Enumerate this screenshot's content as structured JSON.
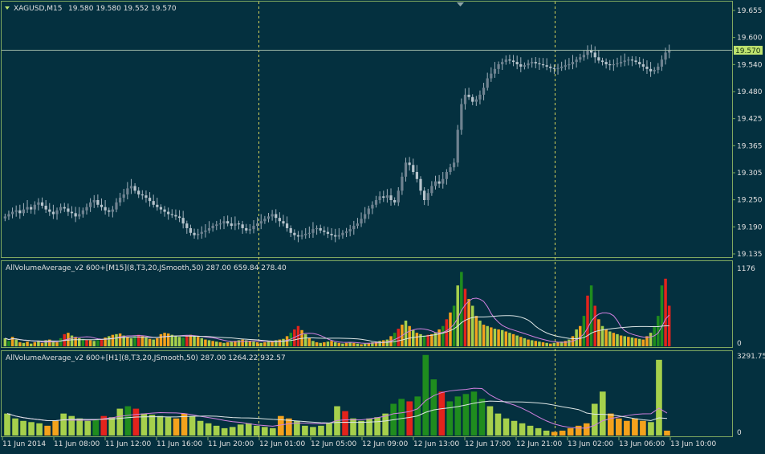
{
  "colors": {
    "background": "#04303f",
    "frame": "#7fa860",
    "text": "#e0e0e0",
    "bull_candle": "#6f8290",
    "bear_candle": "#b7c4cc",
    "wick": "#9fb0bb",
    "grid_dashed": "#d6d35a",
    "price_line": "#9fb8a8",
    "price_tag_bg": "#bfe36f",
    "price_tag_text": "#10300f",
    "vol_lightgreen": "#a6d04c",
    "vol_darkgreen": "#1f8c1e",
    "vol_red": "#e3231c",
    "vol_orange": "#f4a21c",
    "ma_white": "#dde6e6",
    "ma_magenta": "#d080e0"
  },
  "main_panel": {
    "header_title": "XAGUSD,M15",
    "header_ohlc": "19.580 19.580 19.552 19.570",
    "price_tag": "19.570"
  },
  "volume_m15_panel": {
    "header": "AllVolumeAverage_v2 600+[M15](8,T3,20,JSmooth,50) 287.00 659.84 278.40"
  },
  "volume_h1_panel": {
    "header": "AllVolumeAverage_v2 600+[H1](8,T3,20,JSmooth,50) 287.00 1264.22 932.57"
  },
  "chart_data": [
    {
      "type": "candlestick",
      "symbol": "XAGUSD",
      "timeframe": "M15",
      "ylim": [
        19.135,
        19.655
      ],
      "y_ticks": [
        "19.655",
        "19.600",
        "19.540",
        "19.480",
        "19.425",
        "19.365",
        "19.305",
        "19.250",
        "19.190",
        "19.135"
      ],
      "x_ticks": [
        "11 Jun 2014",
        "11 Jun 08:00",
        "11 Jun 12:00",
        "11 Jun 16:00",
        "11 Jun 20:00",
        "12 Jun 01:00",
        "12 Jun 05:00",
        "12 Jun 09:00",
        "12 Jun 13:00",
        "12 Jun 17:00",
        "12 Jun 21:00",
        "13 Jun 02:00",
        "13 Jun 06:00",
        "13 Jun 10:00"
      ],
      "last_price": 19.57,
      "closes": [
        19.215,
        19.22,
        19.225,
        19.228,
        19.222,
        19.23,
        19.235,
        19.23,
        19.24,
        19.245,
        19.238,
        19.23,
        19.225,
        19.22,
        19.228,
        19.235,
        19.232,
        19.225,
        19.222,
        19.215,
        19.22,
        19.228,
        19.235,
        19.245,
        19.25,
        19.24,
        19.235,
        19.228,
        19.225,
        19.23,
        19.245,
        19.255,
        19.262,
        19.275,
        19.28,
        19.27,
        19.262,
        19.26,
        19.255,
        19.248,
        19.24,
        19.235,
        19.23,
        19.225,
        19.22,
        19.218,
        19.215,
        19.212,
        19.2,
        19.19,
        19.18,
        19.175,
        19.178,
        19.182,
        19.185,
        19.19,
        19.195,
        19.198,
        19.2,
        19.205,
        19.2,
        19.195,
        19.2,
        19.198,
        19.19,
        19.185,
        19.188,
        19.195,
        19.2,
        19.205,
        19.21,
        19.215,
        19.22,
        19.212,
        19.205,
        19.2,
        19.19,
        19.18,
        19.175,
        19.172,
        19.175,
        19.178,
        19.18,
        19.188,
        19.19,
        19.185,
        19.182,
        19.178,
        19.175,
        19.172,
        19.175,
        19.18,
        19.183,
        19.188,
        19.195,
        19.2,
        19.21,
        19.22,
        19.232,
        19.24,
        19.25,
        19.258,
        19.255,
        19.26,
        19.25,
        19.245,
        19.27,
        19.3,
        19.33,
        19.325,
        19.31,
        19.295,
        19.27,
        19.25,
        19.265,
        19.28,
        19.29,
        19.285,
        19.295,
        19.31,
        19.32,
        19.33,
        19.4,
        19.455,
        19.475,
        19.47,
        19.46,
        19.465,
        19.475,
        19.49,
        19.51,
        19.52,
        19.53,
        19.54,
        19.545,
        19.55,
        19.548,
        19.545,
        19.54,
        19.535,
        19.538,
        19.542,
        19.545,
        19.542,
        19.54,
        19.538,
        19.535,
        19.532,
        19.53,
        19.532,
        19.535,
        19.538,
        19.54,
        19.545,
        19.55,
        19.555,
        19.56,
        19.57,
        19.565,
        19.555,
        19.548,
        19.545,
        19.54,
        19.538,
        19.54,
        19.542,
        19.545,
        19.548,
        19.55,
        19.548,
        19.545,
        19.54,
        19.535,
        19.53,
        19.525,
        19.528,
        19.535,
        19.55,
        19.565,
        19.57
      ]
    },
    {
      "type": "bar",
      "name": "AllVolumeAverage_v2 600+[M15]",
      "ylim": [
        0,
        1176
      ],
      "y_ticks": [
        "1176",
        "0"
      ],
      "values": [
        120,
        80,
        140,
        100,
        60,
        50,
        70,
        40,
        60,
        80,
        50,
        90,
        100,
        70,
        60,
        120,
        180,
        200,
        160,
        140,
        120,
        110,
        100,
        90,
        80,
        90,
        110,
        130,
        150,
        170,
        180,
        190,
        160,
        140,
        120,
        150,
        170,
        150,
        130,
        110,
        100,
        120,
        180,
        200,
        190,
        170,
        150,
        140,
        130,
        150,
        170,
        160,
        140,
        120,
        100,
        90,
        80,
        70,
        60,
        50,
        60,
        70,
        80,
        90,
        100,
        90,
        80,
        70,
        60,
        50,
        60,
        70,
        80,
        90,
        100,
        110,
        150,
        200,
        250,
        300,
        240,
        180,
        120,
        80,
        60,
        50,
        60,
        70,
        80,
        60,
        50,
        40,
        50,
        60,
        50,
        40,
        30,
        40,
        50,
        60,
        70,
        80,
        90,
        100,
        150,
        200,
        260,
        320,
        380,
        300,
        240,
        200,
        180,
        160,
        170,
        180,
        200,
        250,
        300,
        400,
        500,
        600,
        900,
        1100,
        850,
        700,
        600,
        450,
        380,
        320,
        300,
        280,
        260,
        250,
        240,
        220,
        200,
        180,
        160,
        140,
        120,
        100,
        90,
        80,
        70,
        60,
        50,
        40,
        50,
        60,
        70,
        80,
        100,
        150,
        250,
        300,
        450,
        750,
        900,
        600,
        400,
        300,
        250,
        220,
        200,
        180,
        160,
        150,
        140,
        130,
        120,
        110,
        100,
        150,
        200,
        300,
        450,
        900,
        1000,
        600
      ],
      "colors": [
        "lightgreen",
        "darkgreen",
        "orange",
        "lightgreen",
        "orange",
        "lightgreen",
        "orange",
        "lightgreen",
        "orange",
        "lightgreen",
        "orange",
        "lightgreen",
        "orange",
        "lightgreen",
        "orange",
        "darkgreen",
        "red",
        "orange",
        "lightgreen",
        "orange",
        "lightgreen",
        "darkgreen",
        "red",
        "orange",
        "lightgreen",
        "darkgreen",
        "red",
        "orange",
        "lightgreen",
        "orange",
        "lightgreen",
        "orange",
        "lightgreen",
        "orange",
        "lightgreen",
        "darkgreen",
        "red",
        "orange",
        "lightgreen",
        "orange",
        "lightgreen",
        "orange",
        "orange",
        "orange",
        "orange",
        "lightgreen",
        "lightgreen",
        "lightgreen",
        "darkgreen",
        "red",
        "orange",
        "lightgreen",
        "orange",
        "lightgreen",
        "orange",
        "lightgreen",
        "orange",
        "lightgreen",
        "orange",
        "lightgreen",
        "orange",
        "lightgreen",
        "orange",
        "lightgreen",
        "orange",
        "lightgreen",
        "orange",
        "lightgreen",
        "orange",
        "lightgreen",
        "orange",
        "lightgreen",
        "orange",
        "lightgreen",
        "orange",
        "lightgreen",
        "orange",
        "darkgreen",
        "red",
        "red",
        "orange",
        "lightgreen",
        "orange",
        "lightgreen",
        "orange",
        "lightgreen",
        "orange",
        "lightgreen",
        "orange",
        "lightgreen",
        "orange",
        "lightgreen",
        "orange",
        "lightgreen",
        "orange",
        "lightgreen",
        "orange",
        "lightgreen",
        "orange",
        "lightgreen",
        "orange",
        "lightgreen",
        "orange",
        "lightgreen",
        "orange",
        "darkgreen",
        "red",
        "orange",
        "lightgreen",
        "orange",
        "lightgreen",
        "orange",
        "lightgreen",
        "darkgreen",
        "red",
        "orange",
        "lightgreen",
        "orange",
        "darkgreen",
        "red",
        "orange",
        "darkgreen",
        "lightgreen",
        "darkgreen",
        "red",
        "orange",
        "lightgreen",
        "orange",
        "lightgreen",
        "orange",
        "lightgreen",
        "orange",
        "lightgreen",
        "orange",
        "lightgreen",
        "orange",
        "lightgreen",
        "orange",
        "lightgreen",
        "orange",
        "lightgreen",
        "orange",
        "lightgreen",
        "orange",
        "lightgreen",
        "orange",
        "lightgreen",
        "orange",
        "lightgreen",
        "orange",
        "lightgreen",
        "orange",
        "lightgreen",
        "orange",
        "lightgreen",
        "orange",
        "darkgreen",
        "red",
        "darkgreen",
        "red",
        "orange",
        "lightgreen",
        "orange",
        "lightgreen",
        "orange",
        "lightgreen",
        "orange",
        "lightgreen",
        "orange",
        "lightgreen",
        "orange",
        "lightgreen",
        "orange",
        "orange",
        "lightgreen",
        "darkgreen",
        "darkgreen",
        "darkgreen",
        "red",
        "red"
      ]
    },
    {
      "type": "bar",
      "name": "AllVolumeAverage_v2 600+[H1]",
      "ylim": [
        0,
        3291.75
      ],
      "y_ticks": [
        "3291.75",
        "0"
      ],
      "values": [
        900,
        700,
        600,
        550,
        500,
        400,
        600,
        900,
        800,
        700,
        600,
        650,
        800,
        750,
        1100,
        1200,
        1100,
        900,
        850,
        800,
        750,
        700,
        900,
        800,
        600,
        500,
        400,
        300,
        350,
        450,
        500,
        400,
        350,
        300,
        800,
        700,
        600,
        400,
        350,
        400,
        500,
        1200,
        1000,
        700,
        600,
        700,
        750,
        900,
        1300,
        1500,
        1400,
        1600,
        3300,
        2300,
        1800,
        1400,
        1600,
        1700,
        1800,
        1500,
        1200,
        900,
        700,
        600,
        500,
        400,
        300,
        200,
        150,
        200,
        300,
        400,
        500,
        1300,
        1800,
        900,
        700,
        600,
        700,
        600,
        550,
        3100,
        200
      ],
      "colors": [
        "lightgreen",
        "lightgreen",
        "lightgreen",
        "lightgreen",
        "lightgreen",
        "orange",
        "orange",
        "lightgreen",
        "lightgreen",
        "lightgreen",
        "lightgreen",
        "darkgreen",
        "red",
        "lightgreen",
        "lightgreen",
        "darkgreen",
        "red",
        "lightgreen",
        "lightgreen",
        "lightgreen",
        "lightgreen",
        "orange",
        "orange",
        "lightgreen",
        "lightgreen",
        "lightgreen",
        "lightgreen",
        "lightgreen",
        "lightgreen",
        "lightgreen",
        "lightgreen",
        "lightgreen",
        "lightgreen",
        "lightgreen",
        "orange",
        "orange",
        "lightgreen",
        "lightgreen",
        "lightgreen",
        "lightgreen",
        "lightgreen",
        "lightgreen",
        "red",
        "lightgreen",
        "lightgreen",
        "lightgreen",
        "lightgreen",
        "lightgreen",
        "darkgreen",
        "darkgreen",
        "red",
        "darkgreen",
        "darkgreen",
        "darkgreen",
        "red",
        "darkgreen",
        "darkgreen",
        "darkgreen",
        "darkgreen",
        "darkgreen",
        "lightgreen",
        "lightgreen",
        "lightgreen",
        "lightgreen",
        "lightgreen",
        "lightgreen",
        "lightgreen",
        "lightgreen",
        "orange",
        "orange",
        "orange",
        "orange",
        "orange",
        "lightgreen",
        "lightgreen",
        "orange",
        "orange",
        "orange",
        "orange",
        "orange",
        "lightgreen",
        "lightgreen",
        "orange"
      ]
    }
  ]
}
